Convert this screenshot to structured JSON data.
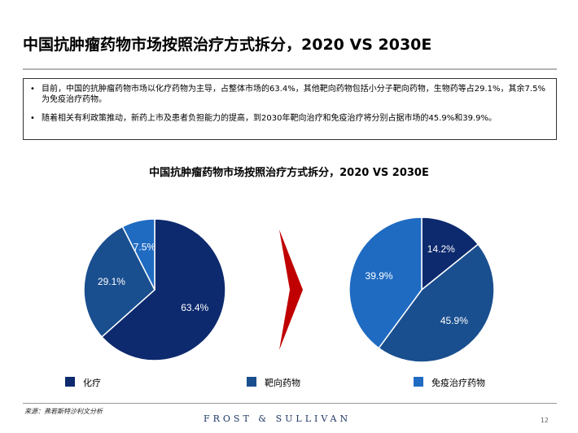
{
  "page": {
    "title": "中国抗肿瘤药物市场按照治疗方式拆分，2020 VS 2030E",
    "bullets": [
      "目前，中国的抗肿瘤药物市场以化疗药物为主导，占整体市场的63.4%，其他靶向药物包括小分子靶向药物，生物药等占29.1%，其余7.5%为免疫治疗药物。",
      "随着相关有利政策推动，新药上市及患者负担能力的提高，到2030年靶向治疗和免疫治疗将分别占据市场的45.9%和39.9%。"
    ],
    "bullet_marker": "•",
    "source": "来源：弗若斯特沙利文分析",
    "brand": "FROST & SULLIVAN",
    "page_number": "12"
  },
  "chart_data": {
    "type": "pie",
    "title": "中国抗肿瘤药物市场按照治疗方式拆分，2020 VS 2030E",
    "series_colors": {
      "化疗": "#0d2a6e",
      "靶向药物": "#1a4f8f",
      "免疫治疗药物": "#1f6bc2"
    },
    "arrow_color": "#c00000",
    "legend": [
      "化疗",
      "靶向药物",
      "免疫治疗药物"
    ],
    "legend_placement": "bottom",
    "pies": [
      {
        "slices": [
          {
            "category": "化疗",
            "value": 63.4,
            "label": "63.4%"
          },
          {
            "category": "靶向药物",
            "value": 29.1,
            "label": "29.1%"
          },
          {
            "category": "免疫治疗药物",
            "value": 7.5,
            "label": "7.5%"
          }
        ]
      },
      {
        "slices": [
          {
            "category": "化疗",
            "value": 14.2,
            "label": "14.2%"
          },
          {
            "category": "靶向药物",
            "value": 45.9,
            "label": "45.9%"
          },
          {
            "category": "免疫治疗药物",
            "value": 39.9,
            "label": "39.9%"
          }
        ]
      }
    ]
  }
}
